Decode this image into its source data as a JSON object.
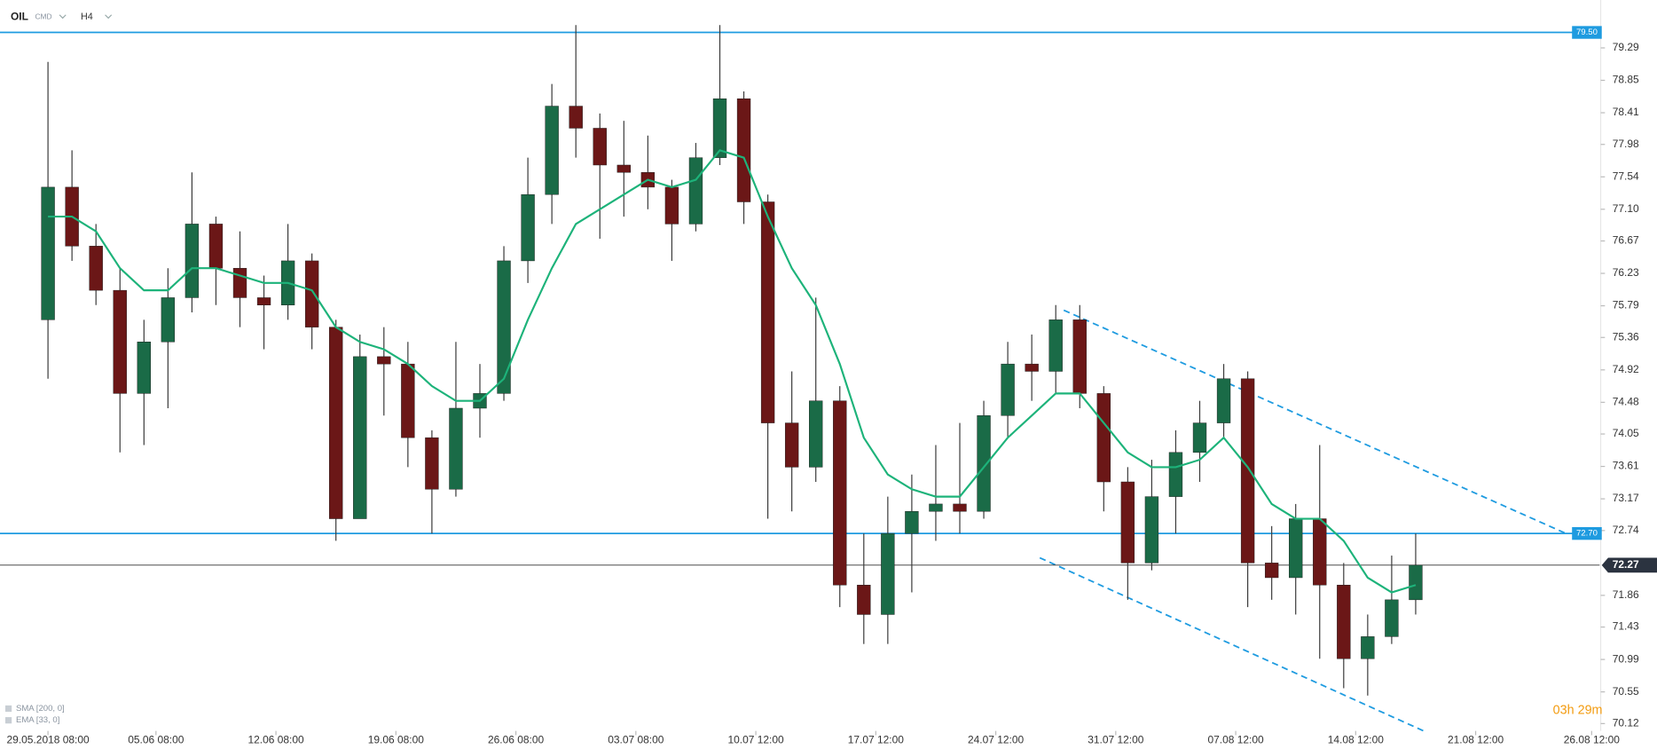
{
  "header": {
    "symbol": "OIL",
    "market": "CMD",
    "interval": "H4"
  },
  "chart_data": {
    "type": "candlestick",
    "x": [
      0,
      6,
      12,
      18,
      24,
      30,
      36,
      42,
      48,
      54,
      60,
      66,
      72,
      78,
      84,
      90,
      96,
      102,
      108,
      114,
      120,
      126,
      132,
      138,
      144,
      150,
      156,
      162,
      168,
      174,
      180,
      186,
      192,
      198,
      204,
      210,
      216,
      222,
      228,
      234,
      240,
      246,
      252,
      258,
      264,
      270,
      276,
      282,
      288,
      294,
      300,
      306,
      312,
      318,
      324,
      330,
      336,
      342
    ],
    "open": [
      75.6,
      77.4,
      76.6,
      76.0,
      74.6,
      75.3,
      75.9,
      76.9,
      76.3,
      75.9,
      75.8,
      76.4,
      75.5,
      72.9,
      75.1,
      75.0,
      74.0,
      73.3,
      74.4,
      74.6,
      76.4,
      77.3,
      78.5,
      78.2,
      77.7,
      77.6,
      77.4,
      76.9,
      77.8,
      78.6,
      77.2,
      74.2,
      73.6,
      74.5,
      72.0,
      71.6,
      72.7,
      73.0,
      73.1,
      73.0,
      74.3,
      75.0,
      74.9,
      75.6,
      74.6,
      73.4,
      72.3,
      73.2,
      73.8,
      74.2,
      74.8,
      72.3,
      72.1,
      72.9,
      72.0,
      71.0,
      71.3,
      71.8
    ],
    "high": [
      79.1,
      77.9,
      76.9,
      76.3,
      75.6,
      76.3,
      77.6,
      77.0,
      76.8,
      76.2,
      76.9,
      76.5,
      75.6,
      75.4,
      75.5,
      75.3,
      74.1,
      75.3,
      75.0,
      76.6,
      77.8,
      78.8,
      79.6,
      78.4,
      78.3,
      78.1,
      77.5,
      78.0,
      79.6,
      78.7,
      77.3,
      74.9,
      75.9,
      74.7,
      72.7,
      73.2,
      73.5,
      73.9,
      74.2,
      74.5,
      75.3,
      75.4,
      75.8,
      75.8,
      74.7,
      73.6,
      73.7,
      74.1,
      74.5,
      75.0,
      74.9,
      72.8,
      73.1,
      73.9,
      72.3,
      71.6,
      72.4,
      72.7
    ],
    "low": [
      74.8,
      76.4,
      75.8,
      73.8,
      73.9,
      74.4,
      75.7,
      75.8,
      75.5,
      75.2,
      75.6,
      75.2,
      72.6,
      72.9,
      74.3,
      73.6,
      72.7,
      73.2,
      74.0,
      74.5,
      76.1,
      76.9,
      77.8,
      76.7,
      77.0,
      77.1,
      76.4,
      76.8,
      77.7,
      76.9,
      72.9,
      73.0,
      73.4,
      71.7,
      71.2,
      71.2,
      71.9,
      72.6,
      72.7,
      72.9,
      74.0,
      74.5,
      74.6,
      74.4,
      73.0,
      71.8,
      72.2,
      72.7,
      73.4,
      74.0,
      71.7,
      71.8,
      71.6,
      71.0,
      70.6,
      70.5,
      71.2,
      71.6
    ],
    "close": [
      77.4,
      76.6,
      76.0,
      74.6,
      75.3,
      75.9,
      76.9,
      76.3,
      75.9,
      75.8,
      76.4,
      75.5,
      72.9,
      75.1,
      75.0,
      74.0,
      73.3,
      74.4,
      74.6,
      76.4,
      77.3,
      78.5,
      78.2,
      77.7,
      77.6,
      77.4,
      76.9,
      77.8,
      78.6,
      77.2,
      74.2,
      73.6,
      74.5,
      72.0,
      71.6,
      72.7,
      73.0,
      73.1,
      73.0,
      74.3,
      75.0,
      74.9,
      75.6,
      74.6,
      73.4,
      72.3,
      73.2,
      73.8,
      74.2,
      74.8,
      72.3,
      72.1,
      72.9,
      72.0,
      71.0,
      71.3,
      71.8,
      72.27
    ],
    "colors": {
      "up": "#1a6b47",
      "down": "#6b1717",
      "wick": "#3a3a3a"
    },
    "indicators": [
      {
        "name": "SMA [200, 0]"
      },
      {
        "name": "EMA [33, 0]",
        "color": "#1db37a",
        "values": [
          77.0,
          77.0,
          76.8,
          76.3,
          76.0,
          76.0,
          76.3,
          76.3,
          76.2,
          76.1,
          76.1,
          76.0,
          75.5,
          75.3,
          75.2,
          75.0,
          74.7,
          74.5,
          74.5,
          74.8,
          75.6,
          76.3,
          76.9,
          77.1,
          77.3,
          77.5,
          77.4,
          77.5,
          77.9,
          77.8,
          77.0,
          76.3,
          75.8,
          75.0,
          74.0,
          73.5,
          73.3,
          73.2,
          73.2,
          73.6,
          74.0,
          74.3,
          74.6,
          74.6,
          74.2,
          73.8,
          73.6,
          73.6,
          73.7,
          74.0,
          73.6,
          73.1,
          72.9,
          72.9,
          72.6,
          72.1,
          71.9,
          72.0
        ]
      }
    ],
    "levels": [
      {
        "value": 79.5,
        "label": "79.50"
      },
      {
        "value": 72.7,
        "label": "72.70"
      }
    ],
    "level_color": "#1e9be0",
    "last_price": 72.27,
    "trendlines": [
      {
        "x": [
          254,
          380
        ],
        "y": [
          75.73,
          72.69
        ]
      },
      {
        "x": [
          248,
          344
        ],
        "y": [
          72.37,
          70.02
        ]
      }
    ],
    "xlim": [
      -12,
      388
    ],
    "ylim": [
      70.02,
      79.94
    ],
    "xticks": [
      {
        "value": 0,
        "label": "29.05.2018  08:00"
      },
      {
        "value": 27,
        "label": "05.06  08:00"
      },
      {
        "value": 57,
        "label": "12.06  08:00"
      },
      {
        "value": 87,
        "label": "19.06  08:00"
      },
      {
        "value": 117,
        "label": "26.06  08:00"
      },
      {
        "value": 147,
        "label": "03.07  08:00"
      },
      {
        "value": 177,
        "label": "10.07  12:00"
      },
      {
        "value": 207,
        "label": "17.07  12:00"
      },
      {
        "value": 237,
        "label": "24.07  12:00"
      },
      {
        "value": 267,
        "label": "31.07  12:00"
      },
      {
        "value": 297,
        "label": "07.08  12:00"
      },
      {
        "value": 327,
        "label": "14.08  12:00"
      },
      {
        "value": 357,
        "label": "21.08  12:00"
      },
      {
        "value": 386,
        "label": "26.08  12:00"
      }
    ],
    "yticks": [
      79.29,
      78.85,
      78.41,
      77.98,
      77.54,
      {
        "value": 77.1,
        "label": "77.10"
      },
      76.67,
      76.23,
      75.79,
      75.36,
      74.92,
      74.48,
      74.05,
      73.61,
      73.17,
      72.74,
      71.86,
      71.43,
      70.99,
      70.55,
      70.12
    ],
    "countdown": "03h 29m"
  }
}
